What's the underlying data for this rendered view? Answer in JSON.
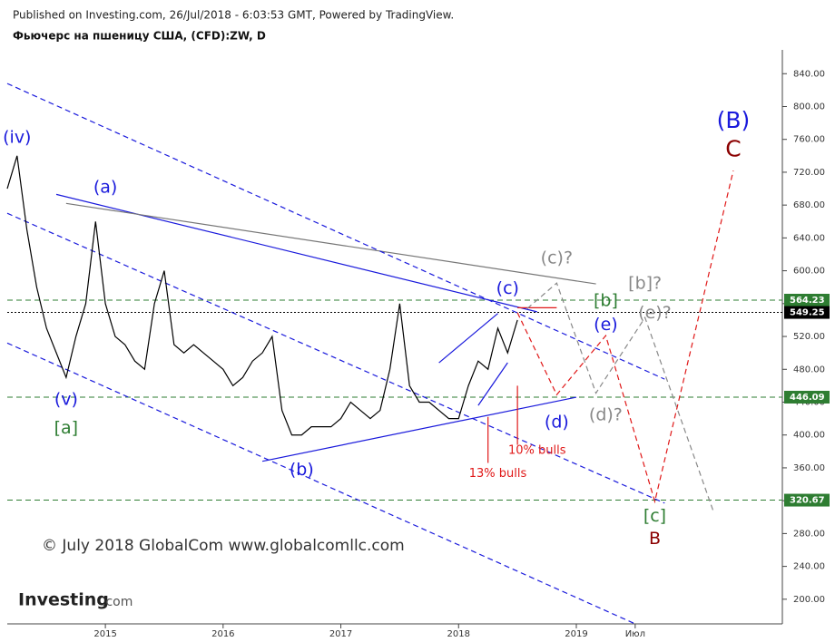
{
  "chart_data": {
    "type": "line",
    "title": "Фьючерс на пшеницу США, (CFD):ZW, D",
    "subtitle": "Published on Investing.com, 26/Jul/2018 - 6:03:53 GMT, Powered by TradingView.",
    "watermark": "© July 2018 GlobalCom www.globalcomllc.com",
    "logo": [
      "Investing",
      ".com"
    ],
    "xlim": [
      "2014-03",
      "2020-10"
    ],
    "ylim": [
      170,
      869
    ],
    "yticks": [
      {
        "value": 200,
        "label": "200.00"
      },
      {
        "value": 240,
        "label": "240.00"
      },
      {
        "value": 280,
        "label": "280.00"
      },
      {
        "value": 320,
        "label": "320.00"
      },
      {
        "value": 360,
        "label": "360.00"
      },
      {
        "value": 400,
        "label": "400.00"
      },
      {
        "value": 440,
        "label": "440.00"
      },
      {
        "value": 480,
        "label": "480.00"
      },
      {
        "value": 520,
        "label": "520.00"
      },
      {
        "value": 560,
        "label": "560.00"
      },
      {
        "value": 600,
        "label": "600.00"
      },
      {
        "value": 640,
        "label": "640.00"
      },
      {
        "value": 680,
        "label": "680.00"
      },
      {
        "value": 720,
        "label": "720.00"
      },
      {
        "value": 760,
        "label": "760.00"
      },
      {
        "value": 800,
        "label": "800.00"
      },
      {
        "value": 840,
        "label": "840.00"
      }
    ],
    "xticks": [
      {
        "value": "2015-01",
        "label": "2015"
      },
      {
        "value": "2016-01",
        "label": "2016"
      },
      {
        "value": "2017-01",
        "label": "2017"
      },
      {
        "value": "2018-01",
        "label": "2018"
      },
      {
        "value": "2019-01",
        "label": "2019"
      },
      {
        "value": "2019-07",
        "label": "Июл"
      }
    ],
    "x": [
      "2014-03",
      "2014-04",
      "2014-05",
      "2014-06",
      "2014-07",
      "2014-08",
      "2014-09",
      "2014-10",
      "2014-11",
      "2014-12",
      "2015-01",
      "2015-02",
      "2015-03",
      "2015-04",
      "2015-05",
      "2015-06",
      "2015-07",
      "2015-08",
      "2015-09",
      "2015-10",
      "2015-11",
      "2015-12",
      "2016-01",
      "2016-02",
      "2016-03",
      "2016-04",
      "2016-05",
      "2016-06",
      "2016-07",
      "2016-08",
      "2016-09",
      "2016-10",
      "2016-11",
      "2016-12",
      "2017-01",
      "2017-02",
      "2017-03",
      "2017-04",
      "2017-05",
      "2017-06",
      "2017-07",
      "2017-08",
      "2017-09",
      "2017-10",
      "2017-11",
      "2017-12",
      "2018-01",
      "2018-02",
      "2018-03",
      "2018-04",
      "2018-05",
      "2018-06",
      "2018-07"
    ],
    "series": [
      {
        "color": "#000000",
        "values": [
          700,
          740,
          650,
          580,
          530,
          500,
          470,
          520,
          560,
          660,
          560,
          520,
          510,
          490,
          480,
          560,
          600,
          510,
          500,
          510,
          500,
          490,
          480,
          460,
          470,
          490,
          500,
          520,
          430,
          400,
          400,
          410,
          410,
          410,
          420,
          440,
          430,
          420,
          430,
          480,
          560,
          460,
          440,
          440,
          430,
          420,
          420,
          460,
          490,
          480,
          530,
          500,
          540
        ]
      }
    ],
    "overlays": [
      {
        "color": "#1a1adc",
        "dash": "solid",
        "x": [
          "2014-08",
          "2018-09"
        ],
        "values": [
          693,
          550
        ]
      },
      {
        "color": "#777777",
        "dash": "solid",
        "x": [
          "2014-09",
          "2019-03"
        ],
        "values": [
          682,
          584
        ]
      },
      {
        "color": "#1a1adc",
        "dash": "solid",
        "x": [
          "2016-05",
          "2019-01"
        ],
        "values": [
          368,
          446
        ]
      },
      {
        "color": "#1a1adc",
        "dash": "solid",
        "x": [
          "2017-11",
          "2018-05"
        ],
        "values": [
          488,
          548
        ]
      },
      {
        "color": "#1a1adc",
        "dash": "solid",
        "x": [
          "2018-03",
          "2018-06"
        ],
        "values": [
          436,
          488
        ]
      },
      {
        "color": "#1a1adc",
        "dash": "dashed",
        "x": [
          "2014-03",
          "2019-10"
        ],
        "values": [
          828,
          468
        ]
      },
      {
        "color": "#1a1adc",
        "dash": "dashed",
        "x": [
          "2014-03",
          "2019-10"
        ],
        "values": [
          670,
          317
        ]
      },
      {
        "color": "#1a1adc",
        "dash": "dashed",
        "x": [
          "2014-03",
          "2019-07"
        ],
        "values": [
          512,
          170
        ]
      },
      {
        "color": "#e01818",
        "dash": "dashed",
        "x": [
          "2018-07",
          "2018-11",
          "2019-04",
          "2019-09",
          "2020-05"
        ],
        "values": [
          549,
          449,
          521,
          319,
          722
        ]
      },
      {
        "color": "#e01818",
        "dash": "solid",
        "x": [
          "2018-07",
          "2018-11"
        ],
        "values": [
          555,
          555
        ]
      },
      {
        "color": "#e01818",
        "dash": "solid",
        "x": [
          "2018-04",
          "2018-04"
        ],
        "values": [
          422,
          366
        ]
      },
      {
        "color": "#e01818",
        "dash": "solid",
        "x": [
          "2018-07",
          "2018-07"
        ],
        "values": [
          460,
          388
        ]
      },
      {
        "color": "#888888",
        "dash": "dashed",
        "x": [
          "2018-08",
          "2018-11",
          "2019-03",
          "2019-08",
          "2020-03"
        ],
        "values": [
          554,
          585,
          451,
          543,
          306
        ]
      }
    ],
    "levels": [
      {
        "value": 564.23,
        "color": "#2e7d32",
        "dash": "dashed"
      },
      {
        "value": 549.25,
        "color": "#000000",
        "dash": "dotted"
      },
      {
        "value": 446.09,
        "color": "#2e7d32",
        "dash": "dashed"
      },
      {
        "value": 320.67,
        "color": "#2e7d32",
        "dash": "dashed"
      }
    ],
    "annotations": [
      {
        "text": "(iv)",
        "x": "2014-04",
        "y": 762,
        "color": "#1a1adc",
        "style": "normal"
      },
      {
        "text": "(a)",
        "x": "2015-01",
        "y": 701,
        "color": "#1a1adc",
        "style": "normal"
      },
      {
        "text": "(v)",
        "x": "2014-09",
        "y": 443,
        "color": "#1a1adc",
        "style": "normal"
      },
      {
        "text": "[a]",
        "x": "2014-09",
        "y": 408,
        "color": "#2e7d32",
        "style": "normal"
      },
      {
        "text": "(b)",
        "x": "2016-09",
        "y": 357,
        "color": "#1a1adc",
        "style": "normal"
      },
      {
        "text": "(c)",
        "x": "2018-06",
        "y": 578,
        "color": "#1a1adc",
        "style": "normal"
      },
      {
        "text": "(c)?",
        "x": "2018-11",
        "y": 615,
        "color": "#888888",
        "style": "normal"
      },
      {
        "text": "[b]",
        "x": "2019-04",
        "y": 563,
        "color": "#2e7d32",
        "style": "normal"
      },
      {
        "text": "(e)",
        "x": "2019-04",
        "y": 534,
        "color": "#1a1adc",
        "style": "normal"
      },
      {
        "text": "[b]?",
        "x": "2019-08",
        "y": 584,
        "color": "#888888",
        "style": "normal"
      },
      {
        "text": "(e)?",
        "x": "2019-09",
        "y": 548,
        "color": "#888888",
        "style": "normal"
      },
      {
        "text": "(d)",
        "x": "2018-11",
        "y": 415,
        "color": "#1a1adc",
        "style": "normal"
      },
      {
        "text": "(d)?",
        "x": "2019-04",
        "y": 424,
        "color": "#888888",
        "style": "normal"
      },
      {
        "text": "13% bulls",
        "x": "2018-05",
        "y": 353,
        "color": "#e01818",
        "style": "small"
      },
      {
        "text": "10% bulls",
        "x": "2018-09",
        "y": 381,
        "color": "#e01818",
        "style": "small"
      },
      {
        "text": "[c]",
        "x": "2019-09",
        "y": 301,
        "color": "#2e7d32",
        "style": "normal"
      },
      {
        "text": "B",
        "x": "2019-09",
        "y": 273,
        "color": "#8b0000",
        "style": "normal"
      },
      {
        "text": "(B)",
        "x": "2020-05",
        "y": 782,
        "color": "#1a1adc",
        "style": "big"
      },
      {
        "text": "C",
        "x": "2020-05",
        "y": 747,
        "color": "#8b0000",
        "style": "big"
      }
    ]
  }
}
